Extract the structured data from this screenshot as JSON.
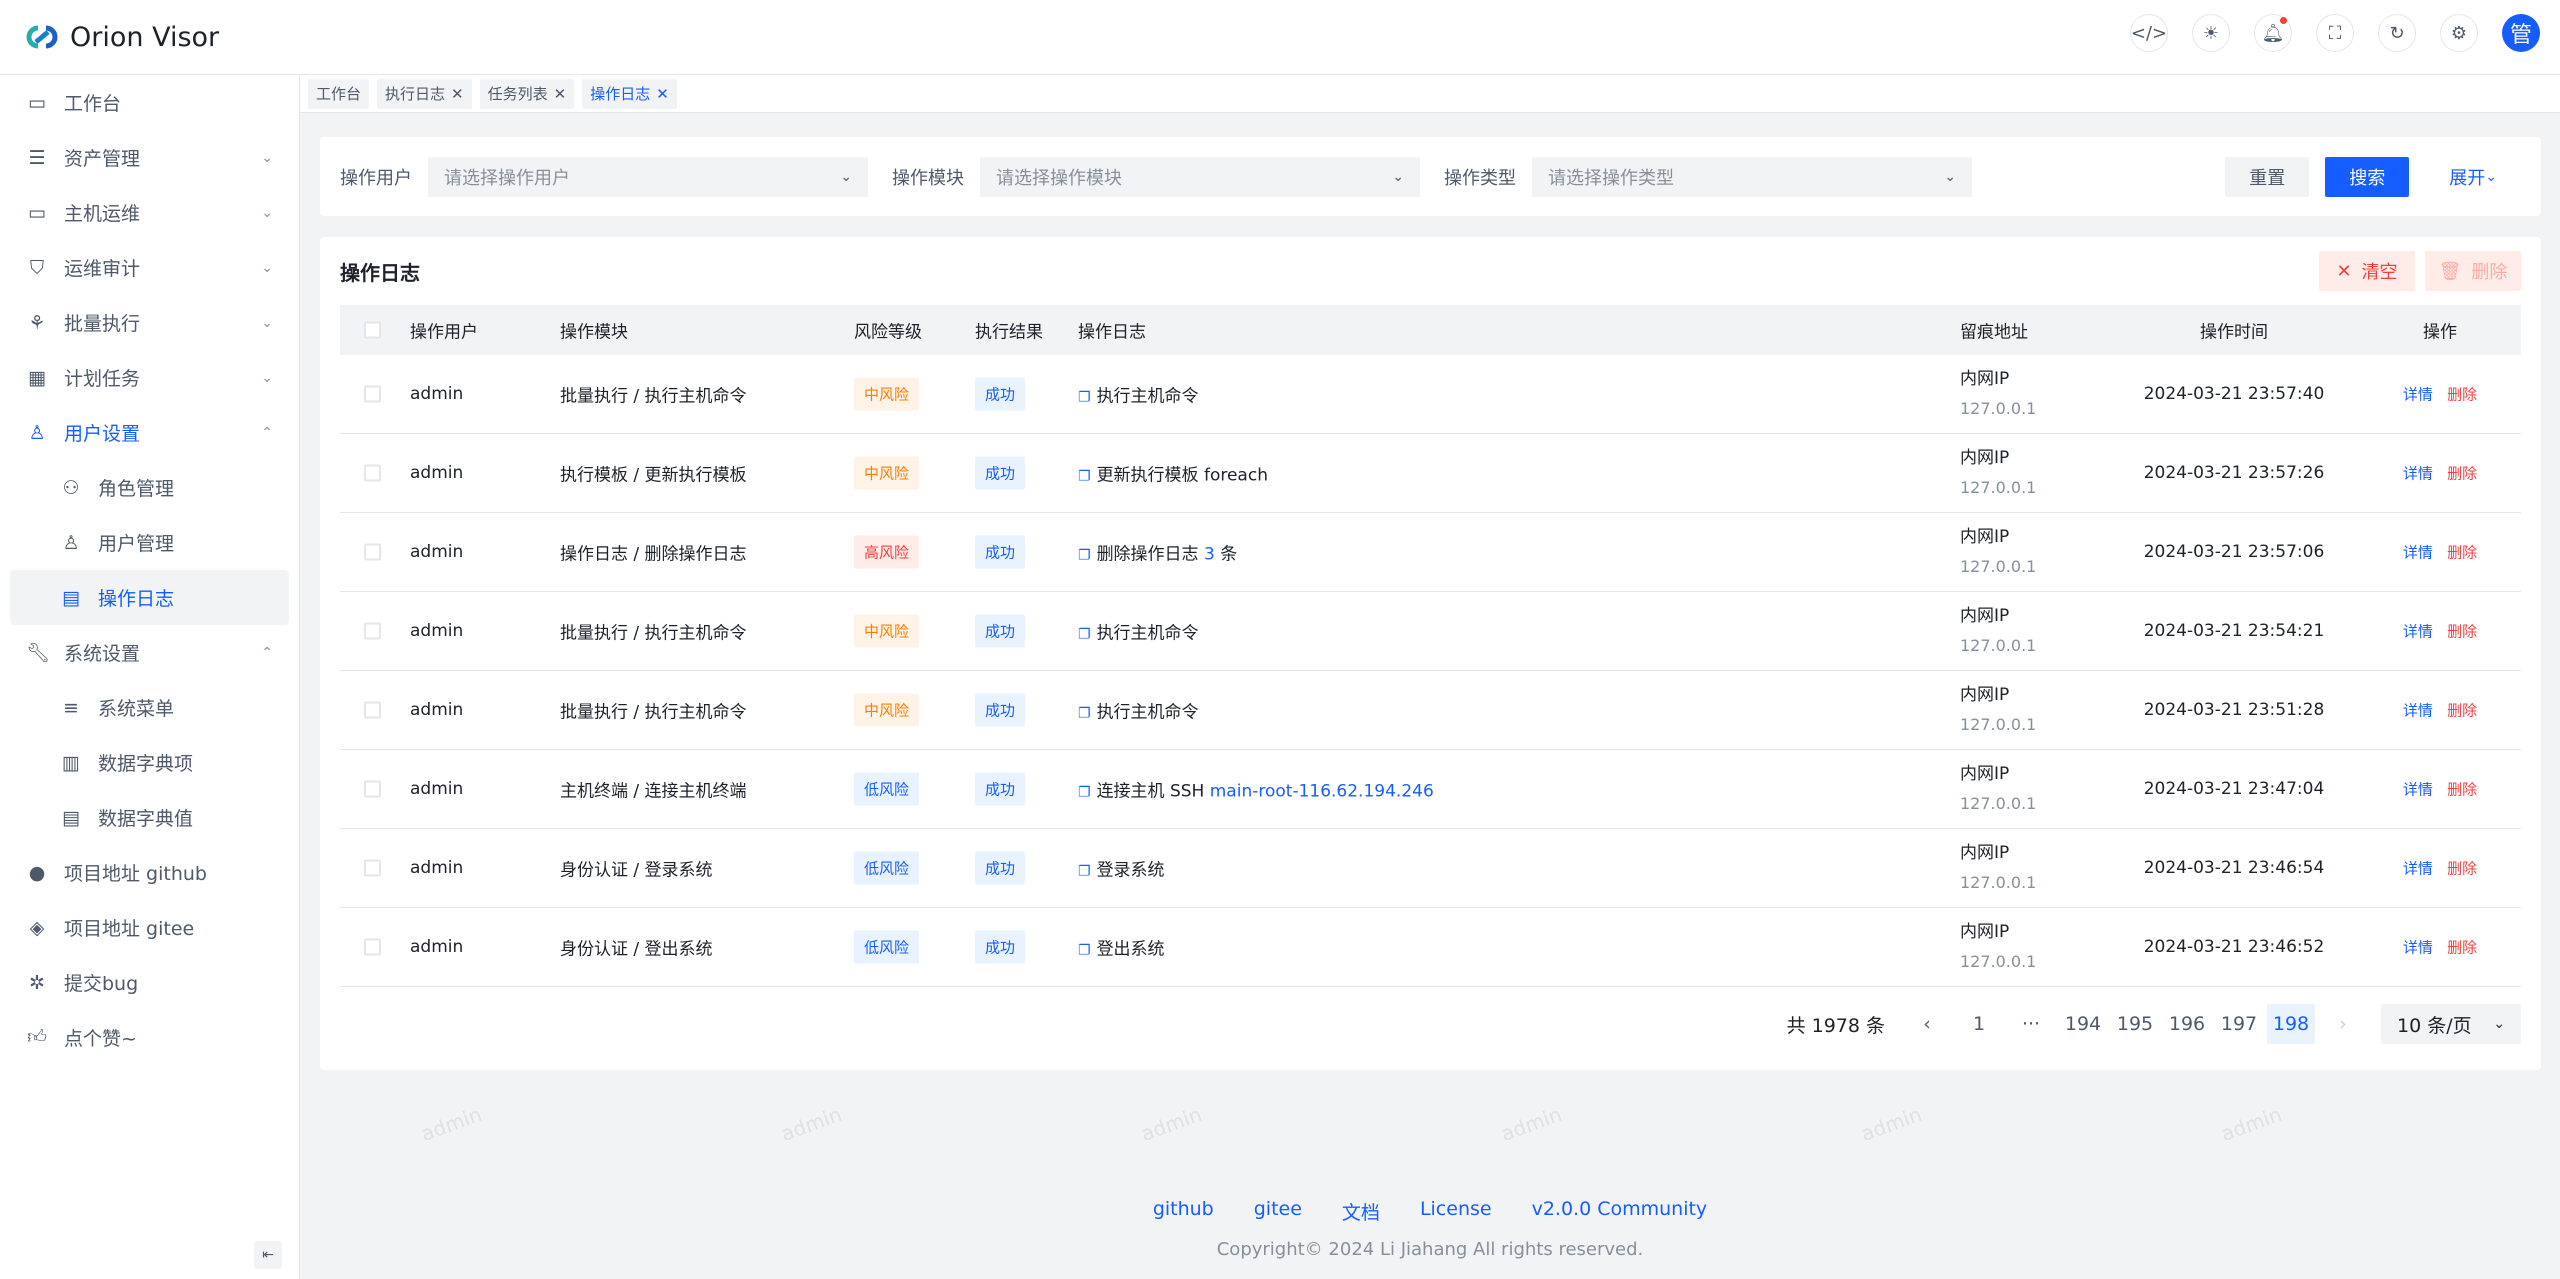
{
  "app": {
    "title": "Orion Visor",
    "avatar": "管"
  },
  "header_icons": [
    "code-icon",
    "theme-icon",
    "bell-icon",
    "fullscreen-icon",
    "refresh-icon",
    "settings-icon"
  ],
  "sidebar": {
    "items": [
      {
        "label": "工作台",
        "icon": "dashboard-icon"
      },
      {
        "label": "资产管理",
        "icon": "asset-icon",
        "chevron": "⌄"
      },
      {
        "label": "主机运维",
        "icon": "monitor-icon",
        "chevron": "⌄"
      },
      {
        "label": "运维审计",
        "icon": "shield-icon",
        "chevron": "⌄"
      },
      {
        "label": "批量执行",
        "icon": "batch-icon",
        "chevron": "⌄"
      },
      {
        "label": "计划任务",
        "icon": "calendar-icon",
        "chevron": "⌄"
      },
      {
        "label": "用户设置",
        "icon": "user-icon",
        "chevron": "⌃"
      },
      {
        "label": "角色管理",
        "icon": "users-icon"
      },
      {
        "label": "用户管理",
        "icon": "user-add-icon"
      },
      {
        "label": "操作日志",
        "icon": "log-icon"
      },
      {
        "label": "系统设置",
        "icon": "wrench-icon",
        "chevron": "⌃"
      },
      {
        "label": "系统菜单",
        "icon": "menu-icon"
      },
      {
        "label": "数据字典项",
        "icon": "book-icon"
      },
      {
        "label": "数据字典值",
        "icon": "table-icon"
      },
      {
        "label": "项目地址 github",
        "icon": "github-icon"
      },
      {
        "label": "项目地址 gitee",
        "icon": "gitee-icon"
      },
      {
        "label": "提交bug",
        "icon": "bug-icon"
      },
      {
        "label": "点个赞~",
        "icon": "thumb-up-icon"
      }
    ]
  },
  "tabs": [
    {
      "label": "工作台"
    },
    {
      "label": "执行日志"
    },
    {
      "label": "任务列表"
    },
    {
      "label": "操作日志"
    }
  ],
  "filters": [
    {
      "label": "操作用户",
      "placeholder": "请选择操作用户"
    },
    {
      "label": "操作模块",
      "placeholder": "请选择操作模块"
    },
    {
      "label": "操作类型",
      "placeholder": "请选择操作类型"
    }
  ],
  "buttons": {
    "reset": "重置",
    "search": "搜索",
    "expand": "展开",
    "clear": "清空",
    "delete": "删除"
  },
  "table": {
    "title": "操作日志",
    "columns": [
      "操作用户",
      "操作模块",
      "风险等级",
      "执行结果",
      "操作日志",
      "留痕地址",
      "操作时间",
      "操作"
    ],
    "rows": [
      {
        "user": "admin",
        "module": "批量执行 / 执行主机命令",
        "risk": "中风险",
        "result": "成功",
        "log": "执行主机命令",
        "log_extra": "",
        "log_tail": "",
        "addr": "内网IP",
        "ip": "127.0.0.1",
        "time": "2024-03-21 23:57:40"
      },
      {
        "user": "admin",
        "module": "执行模板 / 更新执行模板",
        "risk": "中风险",
        "result": "成功",
        "log": "更新执行模板 foreach",
        "log_extra": "",
        "log_tail": "",
        "addr": "内网IP",
        "ip": "127.0.0.1",
        "time": "2024-03-21 23:57:26"
      },
      {
        "user": "admin",
        "module": "操作日志 / 删除操作日志",
        "risk": "高风险",
        "result": "成功",
        "log": "删除操作日志 ",
        "log_extra": "3",
        "log_tail": " 条",
        "addr": "内网IP",
        "ip": "127.0.0.1",
        "time": "2024-03-21 23:57:06"
      },
      {
        "user": "admin",
        "module": "批量执行 / 执行主机命令",
        "risk": "中风险",
        "result": "成功",
        "log": "执行主机命令",
        "log_extra": "",
        "log_tail": "",
        "addr": "内网IP",
        "ip": "127.0.0.1",
        "time": "2024-03-21 23:54:21"
      },
      {
        "user": "admin",
        "module": "批量执行 / 执行主机命令",
        "risk": "中风险",
        "result": "成功",
        "log": "执行主机命令",
        "log_extra": "",
        "log_tail": "",
        "addr": "内网IP",
        "ip": "127.0.0.1",
        "time": "2024-03-21 23:51:28"
      },
      {
        "user": "admin",
        "module": "主机终端 / 连接主机终端",
        "risk": "低风险",
        "result": "成功",
        "log": "连接主机 SSH ",
        "log_extra": "main-root-116.62.194.246",
        "log_tail": "",
        "addr": "内网IP",
        "ip": "127.0.0.1",
        "time": "2024-03-21 23:47:04"
      },
      {
        "user": "admin",
        "module": "身份认证 / 登录系统",
        "risk": "低风险",
        "result": "成功",
        "log": "登录系统",
        "log_extra": "",
        "log_tail": "",
        "addr": "内网IP",
        "ip": "127.0.0.1",
        "time": "2024-03-21 23:46:54"
      },
      {
        "user": "admin",
        "module": "身份认证 / 登出系统",
        "risk": "低风险",
        "result": "成功",
        "log": "登出系统",
        "log_extra": "",
        "log_tail": "",
        "addr": "内网IP",
        "ip": "127.0.0.1",
        "time": "2024-03-21 23:46:52"
      }
    ],
    "row_actions": {
      "detail": "详情",
      "delete": "删除"
    }
  },
  "risk_colors": {
    "低风险": "#165dff",
    "中风险": "#ff7d00",
    "高风险": "#f53f3f"
  },
  "pagination": {
    "total": "共 1978 条",
    "pages": [
      "1",
      "···",
      "194",
      "195",
      "196",
      "197",
      "198"
    ],
    "current": "198",
    "page_size": "10 条/页"
  },
  "watermark": "admin",
  "footer": {
    "links": [
      "github",
      "gitee",
      "文档",
      "License",
      "v2.0.0 Community"
    ],
    "copyright": "Copyright© 2024 Li Jiahang All rights reserved."
  }
}
